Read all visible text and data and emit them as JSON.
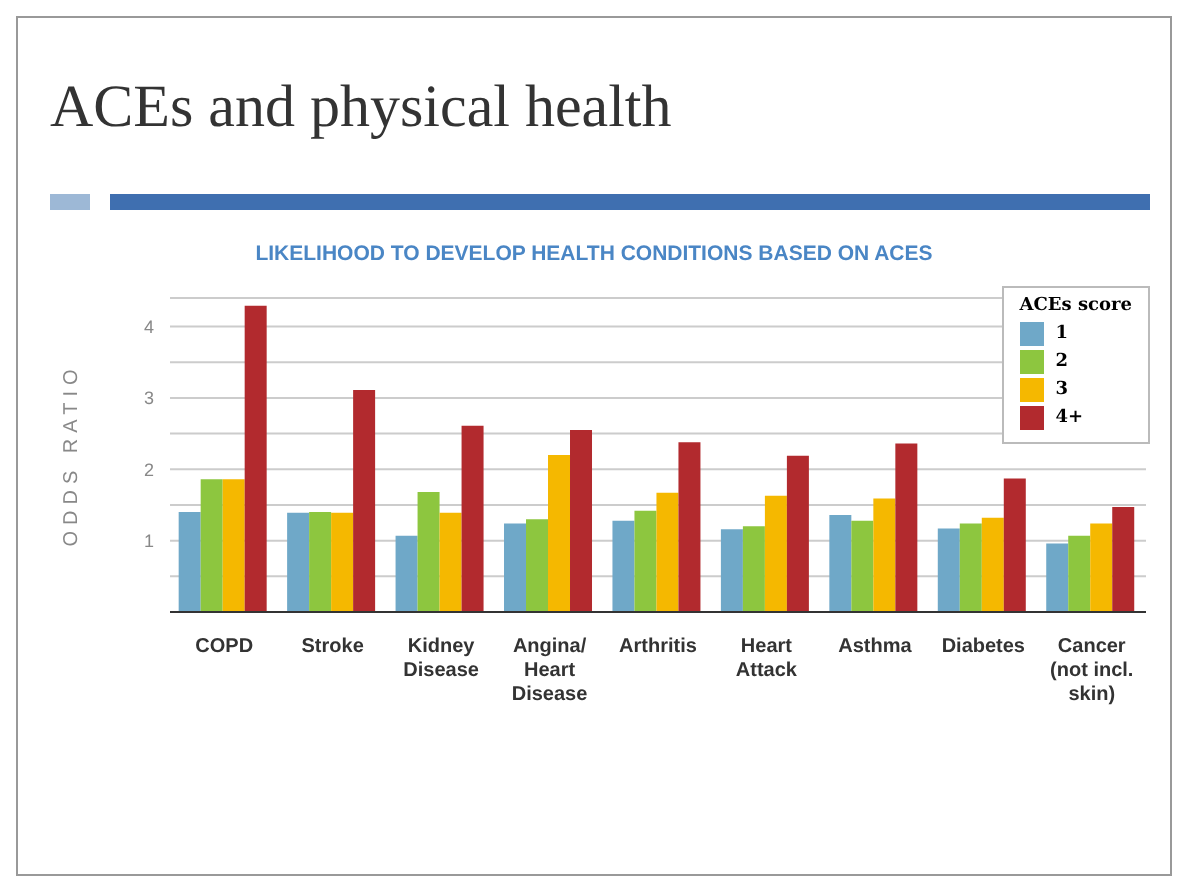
{
  "chart_data": {
    "type": "bar",
    "title": "ACEs and physical health",
    "subtitle": "LIKELIHOOD TO DEVELOP HEALTH CONDITIONS BASED ON ACES",
    "ylabel": "ODDS RATIO",
    "legend_title": "ACEs score",
    "categories": [
      "COPD",
      "Stroke",
      "Kidney\nDisease",
      "Angina/\nHeart\nDisease",
      "Arthritis",
      "Heart\nAttack",
      "Asthma",
      "Diabetes",
      "Cancer\n(not incl.\nskin)"
    ],
    "series": [
      {
        "name": "1",
        "color": "#6fa8c8",
        "values": [
          1.4,
          1.39,
          1.07,
          1.24,
          1.28,
          1.16,
          1.36,
          1.17,
          0.96
        ]
      },
      {
        "name": "2",
        "color": "#8dc63f",
        "values": [
          1.86,
          1.4,
          1.68,
          1.3,
          1.42,
          1.2,
          1.28,
          1.24,
          1.07
        ]
      },
      {
        "name": "3",
        "color": "#f5b800",
        "values": [
          1.86,
          1.39,
          1.39,
          2.2,
          1.67,
          1.63,
          1.59,
          1.32,
          1.24
        ]
      },
      {
        "name": "4+",
        "color": "#b22a2e",
        "values": [
          4.29,
          3.11,
          2.61,
          2.55,
          2.38,
          2.19,
          2.36,
          1.87,
          1.47
        ]
      }
    ],
    "ylim": [
      0,
      4.4
    ],
    "yticks": [
      {
        "value": 0.5,
        "label": null
      },
      1,
      {
        "value": 1.5,
        "label": null
      },
      2,
      {
        "value": 2.5,
        "label": null
      },
      3,
      {
        "value": 3.5,
        "label": null
      },
      4
    ],
    "grid": "y",
    "legend": "top right"
  }
}
